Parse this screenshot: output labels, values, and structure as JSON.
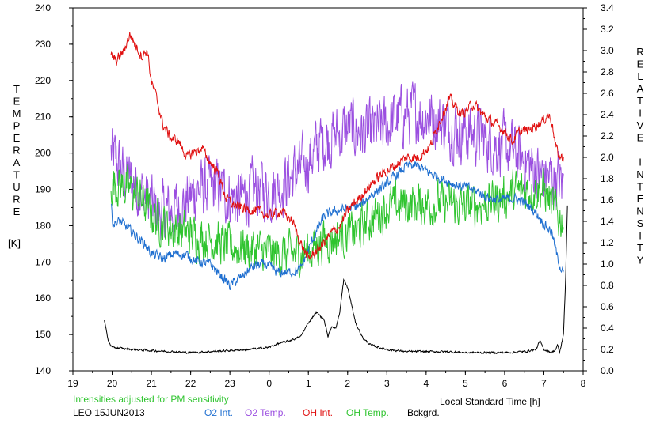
{
  "chart_data": {
    "type": "line",
    "title": "",
    "xlabel": "Local Standard Time [h]",
    "ylabel_left_letters": [
      "T",
      "E",
      "M",
      "P",
      "E",
      "R",
      "A",
      "T",
      "U",
      "R",
      "E"
    ],
    "ylabel_left_unit": "[K]",
    "ylabel_right_letters": [
      "R",
      "E",
      "L",
      "A",
      "T",
      "I",
      "V",
      "E",
      "",
      "I",
      "N",
      "T",
      "E",
      "N",
      "S",
      "I",
      "T",
      "Y"
    ],
    "xlim": [
      19,
      32
    ],
    "ylim_left": [
      140,
      240
    ],
    "ylim_right": [
      0.0,
      3.4
    ],
    "x_ticks": [
      "19",
      "20",
      "21",
      "22",
      "23",
      "0",
      "1",
      "2",
      "3",
      "4",
      "5",
      "6",
      "7",
      "8"
    ],
    "y_left_ticks": [
      "140",
      "150",
      "160",
      "170",
      "180",
      "190",
      "200",
      "210",
      "220",
      "230",
      "240"
    ],
    "y_right_ticks": [
      "0.0",
      "0.2",
      "0.4",
      "0.6",
      "0.8",
      "1.0",
      "1.2",
      "1.4",
      "1.6",
      "1.8",
      "2.0",
      "2.2",
      "2.4",
      "2.6",
      "2.8",
      "3.0",
      "3.2",
      "3.4"
    ],
    "grid": false,
    "note": "Intensities adjusted for PM sensitivity",
    "station": "LEO 15JUN2013",
    "legend": [
      {
        "label": "O2 Int.",
        "color": "#1f6fd0"
      },
      {
        "label": "O2 Temp.",
        "color": "#9b4fe0"
      },
      {
        "label": "OH Int.",
        "color": "#e01010"
      },
      {
        "label": "OH Temp.",
        "color": "#2fc42f"
      },
      {
        "label": "Bckgrd.",
        "color": "#000000"
      }
    ],
    "series": [
      {
        "name": "O2 Temp.",
        "axis": "left",
        "color": "#9b4fe0",
        "noise": 7,
        "x": [
          19.97,
          20.3,
          20.7,
          21.2,
          21.7,
          22.2,
          22.7,
          23.2,
          23.7,
          24.2,
          24.6,
          24.9,
          25.3,
          25.7,
          26.1,
          26.5,
          26.9,
          27.3,
          27.7,
          28.1,
          28.5,
          28.9,
          29.3,
          29.7,
          30.1,
          30.5,
          30.9,
          31.2,
          31.4,
          31.5
        ],
        "y": [
          200,
          194,
          190,
          183,
          185,
          190,
          190,
          187,
          190,
          190,
          194,
          196,
          203,
          205,
          207,
          205,
          207,
          210,
          211,
          210,
          208,
          206,
          205,
          203,
          201,
          198,
          194,
          193,
          192,
          191
        ]
      },
      {
        "name": "OH Temp.",
        "axis": "left",
        "color": "#2fc42f",
        "noise": 5,
        "x": [
          19.97,
          20.3,
          20.7,
          21.0,
          21.4,
          21.8,
          22.2,
          22.6,
          23.0,
          23.4,
          23.8,
          24.2,
          24.6,
          25.0,
          25.4,
          25.8,
          26.2,
          26.6,
          27.0,
          27.4,
          27.8,
          28.2,
          28.6,
          29.0,
          29.4,
          29.8,
          30.2,
          30.6,
          31.0,
          31.2,
          31.4,
          31.5
        ],
        "y": [
          192,
          191,
          188,
          183,
          180,
          178,
          177,
          176,
          174,
          174,
          173,
          172,
          172,
          173,
          176,
          177,
          178,
          182,
          185,
          186,
          186,
          186,
          186,
          185,
          186,
          187,
          189,
          190,
          190,
          186,
          182,
          182
        ]
      },
      {
        "name": "O2 Int.",
        "axis": "right",
        "color": "#1f6fd0",
        "noise": 0.04,
        "x": [
          19.97,
          20.02,
          20.2,
          20.5,
          20.8,
          21.0,
          21.3,
          21.6,
          21.9,
          22.2,
          22.5,
          22.8,
          23.0,
          23.3,
          23.6,
          23.9,
          24.2,
          24.5,
          24.8,
          25.1,
          25.4,
          25.7,
          26.0,
          26.3,
          26.6,
          26.9,
          27.2,
          27.5,
          27.8,
          28.1,
          28.4,
          28.7,
          29.0,
          29.3,
          29.6,
          29.9,
          30.2,
          30.5,
          30.8,
          31.0,
          31.2,
          31.35,
          31.45,
          31.5
        ],
        "y": [
          1.56,
          1.38,
          1.4,
          1.3,
          1.2,
          1.1,
          1.05,
          1.1,
          1.08,
          1.02,
          1.0,
          0.88,
          0.8,
          0.88,
          0.98,
          1.0,
          0.92,
          0.92,
          0.95,
          1.22,
          1.45,
          1.5,
          1.52,
          1.54,
          1.65,
          1.72,
          1.82,
          1.92,
          1.92,
          1.85,
          1.8,
          1.75,
          1.72,
          1.68,
          1.62,
          1.6,
          1.62,
          1.58,
          1.48,
          1.38,
          1.3,
          1.05,
          0.95,
          0.92
        ]
      },
      {
        "name": "OH Int.",
        "axis": "right",
        "color": "#e01010",
        "noise": 0.04,
        "x": [
          19.97,
          20.1,
          20.3,
          20.45,
          20.6,
          20.75,
          20.9,
          21.0,
          21.1,
          21.3,
          21.5,
          21.7,
          21.9,
          22.1,
          22.3,
          22.5,
          22.7,
          22.9,
          23.1,
          23.4,
          23.7,
          24.0,
          24.3,
          24.6,
          24.8,
          25.0,
          25.2,
          25.4,
          25.6,
          25.8,
          26.0,
          26.3,
          26.6,
          26.9,
          27.2,
          27.5,
          27.8,
          28.1,
          28.3,
          28.6,
          28.9,
          29.2,
          29.5,
          29.8,
          30.0,
          30.2,
          30.4,
          30.6,
          30.8,
          31.0,
          31.1,
          31.2,
          31.3,
          31.4,
          31.5
        ],
        "y": [
          2.95,
          2.9,
          3.0,
          3.15,
          3.05,
          2.95,
          3.0,
          2.7,
          2.6,
          2.3,
          2.18,
          2.15,
          2.0,
          2.05,
          2.08,
          1.95,
          1.85,
          1.62,
          1.55,
          1.52,
          1.5,
          1.45,
          1.5,
          1.4,
          1.2,
          1.05,
          1.12,
          1.2,
          1.3,
          1.35,
          1.5,
          1.62,
          1.75,
          1.85,
          1.92,
          2.0,
          2.0,
          2.1,
          2.3,
          2.55,
          2.4,
          2.5,
          2.38,
          2.3,
          2.25,
          2.15,
          2.25,
          2.25,
          2.3,
          2.35,
          2.4,
          2.35,
          2.1,
          2.0,
          2.0
        ]
      },
      {
        "name": "Bckgrd.",
        "axis": "right",
        "color": "#000000",
        "noise": 0.008,
        "x": [
          19.8,
          19.9,
          20.0,
          20.5,
          21.0,
          21.5,
          22.0,
          22.5,
          23.0,
          23.5,
          24.0,
          24.2,
          24.5,
          24.8,
          25.0,
          25.2,
          25.4,
          25.5,
          25.6,
          25.7,
          25.8,
          25.9,
          26.0,
          26.1,
          26.2,
          26.4,
          26.6,
          26.8,
          27.0,
          27.5,
          28.0,
          28.5,
          29.0,
          29.5,
          30.0,
          30.5,
          30.8,
          30.9,
          31.0,
          31.2,
          31.3,
          31.35,
          31.4,
          31.45,
          31.5,
          31.55,
          31.6
        ],
        "y": [
          0.48,
          0.28,
          0.22,
          0.2,
          0.19,
          0.18,
          0.17,
          0.18,
          0.19,
          0.2,
          0.22,
          0.25,
          0.28,
          0.32,
          0.45,
          0.55,
          0.48,
          0.32,
          0.42,
          0.4,
          0.55,
          0.85,
          0.78,
          0.62,
          0.45,
          0.3,
          0.24,
          0.22,
          0.2,
          0.18,
          0.18,
          0.18,
          0.17,
          0.17,
          0.17,
          0.18,
          0.2,
          0.28,
          0.2,
          0.17,
          0.2,
          0.24,
          0.17,
          0.25,
          0.35,
          0.8,
          1.55
        ]
      }
    ]
  }
}
